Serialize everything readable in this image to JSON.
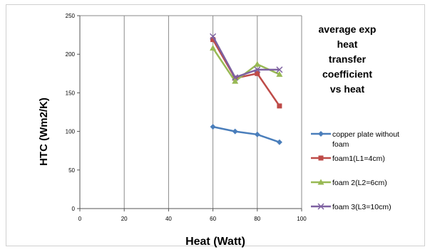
{
  "chart_data": {
    "type": "line",
    "title_lines": [
      "average exp",
      "heat",
      "transfer",
      "coefficient",
      "vs heat"
    ],
    "xlabel": "Heat (Watt)",
    "ylabel": "HTC (Wm2/K)",
    "xlim": [
      0,
      100
    ],
    "ylim": [
      0,
      250
    ],
    "xticks": [
      0,
      20,
      40,
      60,
      80,
      100
    ],
    "yticks": [
      0,
      50,
      100,
      150,
      200,
      250
    ],
    "grid": "vertical",
    "legend_position": "right",
    "series": [
      {
        "name": "copper plate without foam",
        "legend_lines": [
          "copper plate without",
          "foam"
        ],
        "color": "#4a7ebb",
        "marker": "diamond",
        "x": [
          60,
          70,
          80,
          90
        ],
        "values": [
          106,
          100,
          96,
          86
        ]
      },
      {
        "name": "foam1(L1=4cm)",
        "legend_lines": [
          "foam1(L1=4cm)"
        ],
        "color": "#be4b48",
        "marker": "square",
        "x": [
          60,
          70,
          80,
          90
        ],
        "values": [
          219,
          169,
          175,
          133
        ]
      },
      {
        "name": "foam 2(L2=6cm)",
        "legend_lines": [
          "foam 2(L2=6cm)"
        ],
        "color": "#98b954",
        "marker": "triangle",
        "x": [
          60,
          70,
          80,
          90
        ],
        "values": [
          208,
          165,
          187,
          174
        ]
      },
      {
        "name": "foam 3(L3=10cm)",
        "legend_lines": [
          "foam 3(L3=10cm)"
        ],
        "color": "#7d60a0",
        "marker": "x",
        "x": [
          60,
          70,
          80,
          90
        ],
        "values": [
          223,
          170,
          180,
          180
        ]
      }
    ]
  }
}
